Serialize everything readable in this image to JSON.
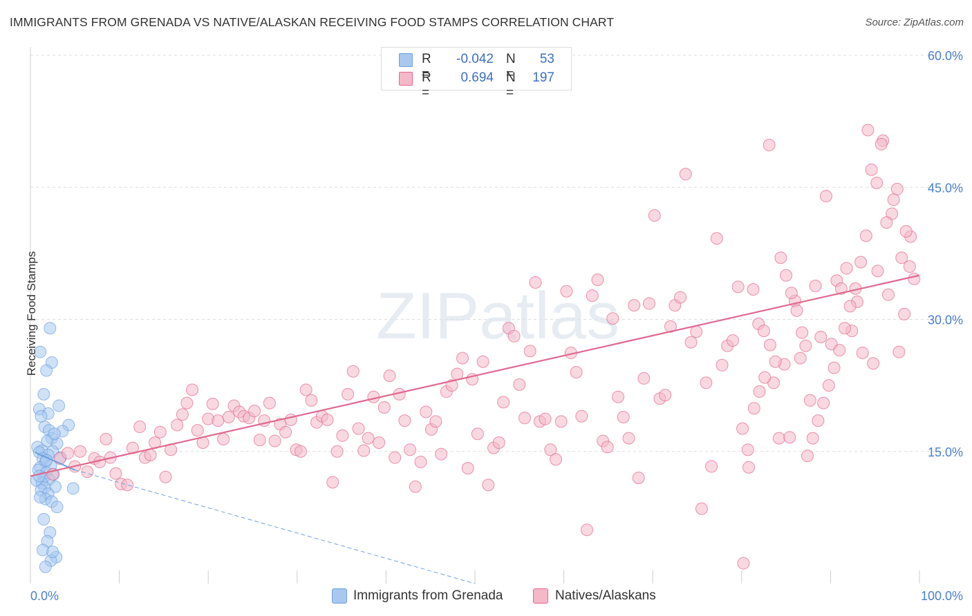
{
  "title": "IMMIGRANTS FROM GRENADA VS NATIVE/ALASKAN RECEIVING FOOD STAMPS CORRELATION CHART",
  "source": "Source: ZipAtlas.com",
  "watermark": "ZIPatlas",
  "legend_top": {
    "rows": [
      {
        "r_label": "R =",
        "r_value": "-0.042",
        "n_label": "N =",
        "n_value": "53",
        "color": "#a8c8f0"
      },
      {
        "r_label": "R =",
        "r_value": "0.694",
        "n_label": "N =",
        "n_value": "197",
        "color": "#f4b8c8"
      }
    ]
  },
  "legend_bottom": [
    {
      "label": "Immigrants from Grenada",
      "color": "#a8c8f0"
    },
    {
      "label": "Natives/Alaskans",
      "color": "#f4b8c8"
    }
  ],
  "chart_data": {
    "type": "scatter",
    "title": "IMMIGRANTS FROM GRENADA VS NATIVE/ALASKAN RECEIVING FOOD STAMPS CORRELATION CHART",
    "xlabel": "",
    "ylabel": "Receiving Food Stamps",
    "xlim": [
      0,
      100
    ],
    "ylim": [
      0,
      60
    ],
    "x_tick_labels": [
      "0.0%",
      "100.0%"
    ],
    "y_tick_labels": [
      "15.0%",
      "30.0%",
      "45.0%",
      "60.0%"
    ],
    "y_ticks": [
      15,
      30,
      45,
      60
    ],
    "grid": true,
    "legend_position": "top-center",
    "series": [
      {
        "name": "Immigrants from Grenada",
        "color": "#6fa0dc",
        "fill": "#a8c8f0",
        "r": -0.042,
        "n": 53,
        "trend": {
          "x": [
            0.5,
            5
          ],
          "y": [
            14.9,
            12.9
          ],
          "style": "solid",
          "extended": {
            "x": [
              5,
              50
            ],
            "y": [
              12.9,
              0
            ]
          }
        },
        "points": [
          [
            2.2,
            29.0
          ],
          [
            1.1,
            26.3
          ],
          [
            2.4,
            25.1
          ],
          [
            1.8,
            24.2
          ],
          [
            1.5,
            21.5
          ],
          [
            3.2,
            20.2
          ],
          [
            1.0,
            19.8
          ],
          [
            2.0,
            19.3
          ],
          [
            1.2,
            19.0
          ],
          [
            4.3,
            18.0
          ],
          [
            1.6,
            17.8
          ],
          [
            2.1,
            17.4
          ],
          [
            3.6,
            17.3
          ],
          [
            2.4,
            16.5
          ],
          [
            1.9,
            16.2
          ],
          [
            3.0,
            15.9
          ],
          [
            0.8,
            15.5
          ],
          [
            1.3,
            15.1
          ],
          [
            2.5,
            15.0
          ],
          [
            1.0,
            14.9
          ],
          [
            2.0,
            14.6
          ],
          [
            1.4,
            14.2
          ],
          [
            1.7,
            13.8
          ],
          [
            2.3,
            13.4
          ],
          [
            1.1,
            13.2
          ],
          [
            0.9,
            12.9
          ],
          [
            1.8,
            12.6
          ],
          [
            2.6,
            12.4
          ],
          [
            1.5,
            12.0
          ],
          [
            2.1,
            11.8
          ],
          [
            0.7,
            11.7
          ],
          [
            1.3,
            11.4
          ],
          [
            2.8,
            11.0
          ],
          [
            1.6,
            10.9
          ],
          [
            1.2,
            10.6
          ],
          [
            2.0,
            10.2
          ],
          [
            4.8,
            10.8
          ],
          [
            1.7,
            9.6
          ],
          [
            2.4,
            9.3
          ],
          [
            1.1,
            9.8
          ],
          [
            3.0,
            8.7
          ],
          [
            1.5,
            7.3
          ],
          [
            2.2,
            5.8
          ],
          [
            1.9,
            4.8
          ],
          [
            1.4,
            3.8
          ],
          [
            2.9,
            3.0
          ],
          [
            2.3,
            2.6
          ],
          [
            1.7,
            1.9
          ],
          [
            2.5,
            3.6
          ],
          [
            1.0,
            12.2
          ],
          [
            2.7,
            17.0
          ],
          [
            1.8,
            14.0
          ],
          [
            3.4,
            14.3
          ]
        ]
      },
      {
        "name": "Natives/Alaskans",
        "color": "#e0698f",
        "fill": "#f4b8c8",
        "r": 0.694,
        "n": 197,
        "trend": {
          "x": [
            0,
            100
          ],
          "y": [
            12.2,
            35.0
          ],
          "style": "solid"
        },
        "points": [
          [
            2.5,
            12.4
          ],
          [
            3.3,
            14.2
          ],
          [
            4.2,
            14.8
          ],
          [
            5.0,
            13.3
          ],
          [
            5.6,
            15.0
          ],
          [
            6.4,
            12.7
          ],
          [
            7.2,
            14.2
          ],
          [
            7.8,
            13.8
          ],
          [
            8.5,
            16.4
          ],
          [
            9.0,
            14.3
          ],
          [
            9.6,
            12.5
          ],
          [
            10.2,
            11.3
          ],
          [
            10.9,
            11.2
          ],
          [
            11.5,
            15.4
          ],
          [
            12.3,
            17.8
          ],
          [
            12.9,
            14.3
          ],
          [
            13.5,
            14.6
          ],
          [
            14.0,
            16.0
          ],
          [
            14.6,
            17.2
          ],
          [
            15.2,
            12.1
          ],
          [
            15.8,
            15.2
          ],
          [
            16.5,
            18.0
          ],
          [
            17.1,
            19.2
          ],
          [
            17.6,
            20.5
          ],
          [
            18.2,
            22.0
          ],
          [
            18.8,
            17.4
          ],
          [
            19.4,
            16.0
          ],
          [
            20.0,
            18.7
          ],
          [
            20.5,
            20.4
          ],
          [
            21.1,
            18.5
          ],
          [
            21.7,
            16.4
          ],
          [
            22.3,
            18.9
          ],
          [
            22.9,
            20.2
          ],
          [
            23.5,
            19.5
          ],
          [
            24.0,
            19.0
          ],
          [
            24.6,
            18.8
          ],
          [
            25.2,
            19.6
          ],
          [
            25.8,
            16.3
          ],
          [
            26.3,
            18.5
          ],
          [
            26.9,
            20.5
          ],
          [
            27.5,
            16.2
          ],
          [
            28.1,
            18.1
          ],
          [
            28.7,
            17.2
          ],
          [
            29.3,
            18.6
          ],
          [
            29.9,
            15.2
          ],
          [
            30.4,
            15.0
          ],
          [
            31.0,
            22.0
          ],
          [
            31.6,
            20.8
          ],
          [
            32.2,
            18.3
          ],
          [
            32.8,
            19.0
          ],
          [
            33.4,
            18.6
          ],
          [
            34.0,
            11.5
          ],
          [
            34.5,
            15.0
          ],
          [
            35.1,
            16.8
          ],
          [
            35.7,
            21.5
          ],
          [
            36.3,
            24.1
          ],
          [
            36.9,
            17.6
          ],
          [
            37.5,
            15.1
          ],
          [
            38.0,
            16.5
          ],
          [
            38.6,
            21.2
          ],
          [
            39.2,
            16.0
          ],
          [
            39.8,
            20.0
          ],
          [
            40.4,
            23.6
          ],
          [
            41.0,
            14.3
          ],
          [
            41.5,
            21.5
          ],
          [
            42.1,
            18.5
          ],
          [
            42.7,
            15.2
          ],
          [
            43.3,
            11.0
          ],
          [
            43.9,
            13.8
          ],
          [
            44.5,
            19.5
          ],
          [
            45.1,
            17.5
          ],
          [
            45.6,
            18.4
          ],
          [
            46.2,
            14.7
          ],
          [
            46.8,
            21.8
          ],
          [
            47.4,
            22.5
          ],
          [
            48.0,
            23.8
          ],
          [
            48.6,
            25.6
          ],
          [
            49.2,
            13.1
          ],
          [
            49.7,
            23.2
          ],
          [
            50.3,
            17.0
          ],
          [
            50.9,
            25.2
          ],
          [
            51.5,
            11.2
          ],
          [
            52.1,
            15.4
          ],
          [
            52.7,
            16.0
          ],
          [
            53.2,
            20.6
          ],
          [
            53.8,
            29.0
          ],
          [
            54.4,
            28.1
          ],
          [
            55.0,
            22.6
          ],
          [
            55.6,
            18.8
          ],
          [
            56.2,
            26.4
          ],
          [
            56.8,
            34.2
          ],
          [
            57.3,
            18.4
          ],
          [
            57.9,
            18.7
          ],
          [
            58.5,
            15.2
          ],
          [
            59.1,
            14.1
          ],
          [
            59.7,
            18.4
          ],
          [
            60.3,
            33.2
          ],
          [
            60.8,
            26.2
          ],
          [
            61.4,
            24.0
          ],
          [
            62.0,
            19.0
          ],
          [
            62.6,
            6.1
          ],
          [
            63.2,
            32.7
          ],
          [
            63.8,
            34.5
          ],
          [
            64.4,
            16.2
          ],
          [
            64.9,
            15.5
          ],
          [
            65.5,
            30.1
          ],
          [
            66.1,
            21.2
          ],
          [
            66.7,
            18.9
          ],
          [
            67.3,
            16.5
          ],
          [
            67.9,
            31.6
          ],
          [
            68.4,
            12.0
          ],
          [
            69.0,
            23.3
          ],
          [
            69.6,
            31.8
          ],
          [
            70.2,
            41.8
          ],
          [
            70.8,
            21.0
          ],
          [
            71.4,
            21.4
          ],
          [
            72.0,
            29.2
          ],
          [
            72.5,
            31.6
          ],
          [
            73.1,
            32.5
          ],
          [
            73.7,
            46.5
          ],
          [
            74.3,
            27.4
          ],
          [
            74.9,
            28.6
          ],
          [
            75.5,
            8.5
          ],
          [
            76.0,
            22.8
          ],
          [
            76.6,
            13.3
          ],
          [
            77.2,
            39.2
          ],
          [
            77.8,
            24.8
          ],
          [
            78.4,
            27.0
          ],
          [
            79.0,
            27.6
          ],
          [
            79.6,
            33.7
          ],
          [
            80.1,
            17.6
          ],
          [
            80.7,
            15.2
          ],
          [
            81.3,
            33.4
          ],
          [
            81.9,
            29.5
          ],
          [
            82.5,
            28.7
          ],
          [
            83.1,
            49.8
          ],
          [
            83.6,
            22.8
          ],
          [
            84.2,
            16.5
          ],
          [
            84.8,
            24.9
          ],
          [
            85.4,
            16.6
          ],
          [
            86.0,
            32.1
          ],
          [
            86.6,
            25.6
          ],
          [
            87.2,
            27.0
          ],
          [
            87.7,
            20.8
          ],
          [
            88.3,
            33.8
          ],
          [
            88.9,
            28.0
          ],
          [
            89.5,
            44.0
          ],
          [
            90.1,
            27.2
          ],
          [
            90.7,
            34.4
          ],
          [
            91.2,
            33.5
          ],
          [
            91.8,
            35.8
          ],
          [
            92.4,
            28.7
          ],
          [
            93.0,
            32.0
          ],
          [
            93.6,
            26.2
          ],
          [
            94.2,
            51.5
          ],
          [
            94.8,
            25.0
          ],
          [
            95.3,
            35.5
          ],
          [
            95.9,
            50.3
          ],
          [
            96.5,
            32.8
          ],
          [
            97.1,
            43.6
          ],
          [
            97.7,
            26.3
          ],
          [
            98.3,
            30.6
          ],
          [
            98.9,
            36.0
          ],
          [
            99.4,
            34.6
          ],
          [
            99.0,
            39.4
          ],
          [
            98.5,
            40.0
          ],
          [
            98.0,
            37.0
          ],
          [
            97.5,
            44.8
          ],
          [
            96.9,
            42.0
          ],
          [
            96.3,
            41.0
          ],
          [
            95.7,
            49.9
          ],
          [
            95.2,
            45.5
          ],
          [
            94.6,
            47.0
          ],
          [
            94.0,
            39.5
          ],
          [
            93.4,
            36.5
          ],
          [
            92.8,
            33.5
          ],
          [
            92.2,
            31.5
          ],
          [
            91.6,
            29.0
          ],
          [
            91.0,
            26.5
          ],
          [
            90.4,
            24.5
          ],
          [
            89.8,
            22.5
          ],
          [
            89.2,
            20.5
          ],
          [
            88.6,
            18.5
          ],
          [
            88.0,
            16.5
          ],
          [
            87.4,
            14.5
          ],
          [
            86.8,
            28.5
          ],
          [
            86.2,
            31.0
          ],
          [
            85.6,
            33.0
          ],
          [
            85.0,
            35.0
          ],
          [
            84.4,
            37.0
          ],
          [
            83.8,
            25.2
          ],
          [
            83.2,
            27.1
          ],
          [
            82.6,
            23.4
          ],
          [
            82.0,
            21.8
          ],
          [
            81.4,
            19.9
          ],
          [
            80.8,
            13.2
          ],
          [
            80.2,
            2.3
          ]
        ]
      }
    ]
  }
}
